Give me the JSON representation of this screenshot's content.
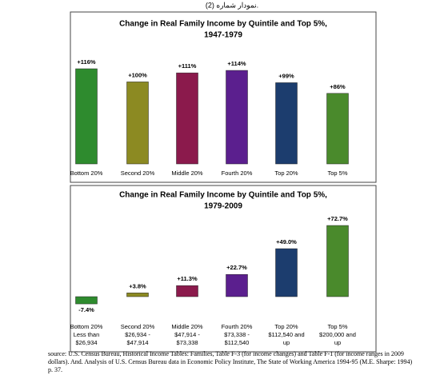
{
  "caption": "نمودار شماره (2).",
  "chart_data": [
    {
      "type": "bar",
      "title": [
        "Change in Real Family Income by Quintile and Top 5%,",
        "1947-1979"
      ],
      "categories": [
        [
          "Bottom 20%"
        ],
        [
          "Second 20%"
        ],
        [
          "Middle 20%"
        ],
        [
          "Fourth 20%"
        ],
        [
          "Top 20%"
        ],
        [
          "Top 5%"
        ]
      ],
      "values": [
        116,
        100,
        111,
        114,
        99,
        86
      ],
      "value_labels": [
        "+116%",
        "+100%",
        "+111%",
        "+114%",
        "+99%",
        "+86%"
      ],
      "colors": [
        "#2e8b2e",
        "#8c8a22",
        "#8b1a4c",
        "#5b1f8e",
        "#1c3d6e",
        "#4a8a2c"
      ]
    },
    {
      "type": "bar",
      "title": [
        "Change in Real Family Income by Quintile and Top 5%,",
        "1979-2009"
      ],
      "categories": [
        [
          "Bottom 20%",
          "Less than",
          "$26,934"
        ],
        [
          "Second 20%",
          "$26,934 -",
          "$47,914"
        ],
        [
          "Middle 20%",
          "$47,914 -",
          "$73,338"
        ],
        [
          "Fourth 20%",
          "$73,338 -",
          "$112,540"
        ],
        [
          "Top 20%",
          "$112,540 and",
          "up"
        ],
        [
          "Top 5%",
          "$200,000 and",
          "up"
        ]
      ],
      "values": [
        -7.4,
        3.8,
        11.3,
        22.7,
        49.0,
        72.7
      ],
      "value_labels": [
        "-7.4%",
        "+3.8%",
        "+11.3%",
        "+22.7%",
        "+49.0%",
        "+72.7%"
      ],
      "colors": [
        "#2e8b2e",
        "#8c8a22",
        "#8b1a4c",
        "#5b1f8e",
        "#1c3d6e",
        "#4a8a2c"
      ]
    }
  ],
  "source": "source: U.S. Census Bureau, Historical Income Tables: Families, Table F-3 (for income changes) and Table F-1 (for income ranges in 2009 dollars). And. Analysis of U.S. Census Bureau data in Economic Policy Institute, The State of Working America 1994-95 (M.E. Sharpe: 1994) p. 37."
}
